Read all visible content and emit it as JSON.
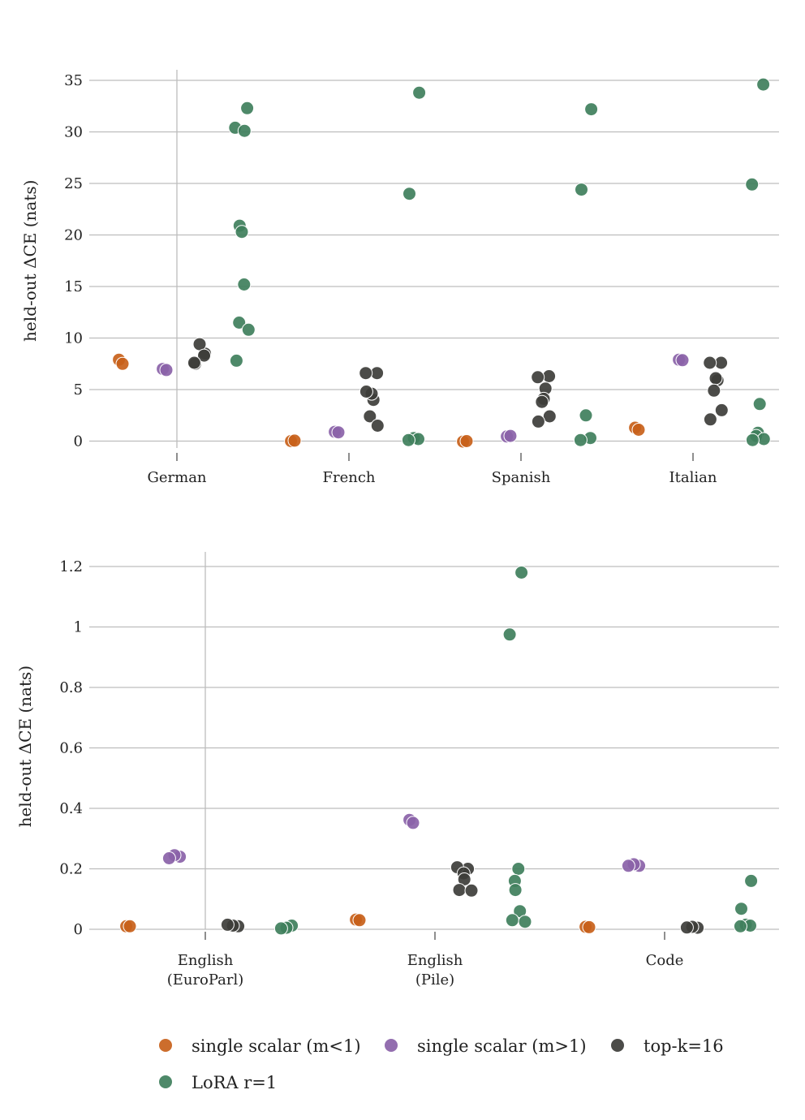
{
  "colors": {
    "single scalar (m<1)": "#c8611a",
    "single scalar (m>1)": "#8a62a8",
    "top-k=16": "#3d3d3a",
    "LoRA r=1": "#3f7f5c"
  },
  "legend": {
    "items": [
      "single scalar (m<1)",
      "single scalar (m>1)",
      "top-k=16",
      "LoRA r=1"
    ]
  },
  "chart_data": [
    {
      "type": "scatter",
      "ylabel": "held-out ΔCE (nats)",
      "ylim": [
        -1.5,
        36.5
      ],
      "yticks": [
        0,
        5,
        10,
        15,
        20,
        25,
        30,
        35
      ],
      "ytick_labels": [
        "0",
        "5",
        "10",
        "15",
        "20",
        "25",
        "30",
        "35"
      ],
      "grid": true,
      "categories": [
        [
          "German"
        ],
        [
          "French"
        ],
        [
          "Spanish"
        ],
        [
          "Italian"
        ]
      ],
      "series": [
        {
          "name": "single scalar (m<1)",
          "points": [
            [
              0,
              7.9
            ],
            [
              0,
              7.5
            ],
            [
              1,
              0.0
            ],
            [
              1,
              0.05
            ],
            [
              2,
              -0.05
            ],
            [
              2,
              0.0
            ],
            [
              3,
              1.3
            ],
            [
              3,
              1.1
            ]
          ]
        },
        {
          "name": "single scalar (m>1)",
          "points": [
            [
              0,
              7.0
            ],
            [
              0,
              6.9
            ],
            [
              1,
              0.9
            ],
            [
              1,
              0.85
            ],
            [
              2,
              0.45
            ],
            [
              2,
              0.5
            ],
            [
              3,
              7.9
            ],
            [
              3,
              7.85
            ]
          ]
        },
        {
          "name": "top-k=16",
          "points": [
            [
              0,
              8.5
            ],
            [
              0,
              7.5
            ],
            [
              0,
              9.4
            ],
            [
              0,
              8.3
            ],
            [
              0,
              7.6
            ],
            [
              1,
              6.6
            ],
            [
              1,
              6.6
            ],
            [
              1,
              4.0
            ],
            [
              1,
              4.6
            ],
            [
              1,
              2.4
            ],
            [
              1,
              1.5
            ],
            [
              1,
              4.8
            ],
            [
              2,
              6.3
            ],
            [
              2,
              6.2
            ],
            [
              2,
              5.1
            ],
            [
              2,
              4.1
            ],
            [
              2,
              3.8
            ],
            [
              2,
              2.4
            ],
            [
              2,
              1.9
            ],
            [
              3,
              7.6
            ],
            [
              3,
              7.6
            ],
            [
              3,
              5.9
            ],
            [
              3,
              6.1
            ],
            [
              3,
              4.9
            ],
            [
              3,
              3.0
            ],
            [
              3,
              2.1
            ]
          ]
        },
        {
          "name": "LoRA r=1",
          "points": [
            [
              0,
              32.3
            ],
            [
              0,
              30.4
            ],
            [
              0,
              30.1
            ],
            [
              0,
              20.9
            ],
            [
              0,
              20.3
            ],
            [
              0,
              15.2
            ],
            [
              0,
              11.5
            ],
            [
              0,
              10.8
            ],
            [
              0,
              7.8
            ],
            [
              1,
              33.8
            ],
            [
              1,
              24.0
            ],
            [
              1,
              0.3
            ],
            [
              1,
              0.2
            ],
            [
              1,
              0.1
            ],
            [
              2,
              32.2
            ],
            [
              2,
              24.4
            ],
            [
              2,
              2.5
            ],
            [
              2,
              0.3
            ],
            [
              2,
              0.1
            ],
            [
              3,
              34.6
            ],
            [
              3,
              24.9
            ],
            [
              3,
              3.6
            ],
            [
              3,
              0.8
            ],
            [
              3,
              0.5
            ],
            [
              3,
              0.2
            ],
            [
              3,
              0.1
            ]
          ]
        }
      ]
    },
    {
      "type": "scatter",
      "ylabel": "held-out ΔCE (nats)",
      "ylim": [
        -0.04,
        1.25
      ],
      "yticks": [
        0,
        0.2,
        0.4,
        0.6,
        0.8,
        1.0,
        1.2
      ],
      "ytick_labels": [
        "0",
        "0.2",
        "0.4",
        "0.6",
        "0.8",
        "1",
        "1.2"
      ],
      "grid": true,
      "categories": [
        [
          "English",
          "(EuroParl)"
        ],
        [
          "English",
          "(Pile)"
        ],
        [
          "Code"
        ]
      ],
      "series": [
        {
          "name": "single scalar (m<1)",
          "points": [
            [
              0,
              0.01
            ],
            [
              0,
              0.01
            ],
            [
              1,
              0.032
            ],
            [
              1,
              0.03
            ],
            [
              2,
              0.008
            ],
            [
              2,
              0.007
            ]
          ]
        },
        {
          "name": "single scalar (m>1)",
          "points": [
            [
              0,
              0.24
            ],
            [
              0,
              0.245
            ],
            [
              0,
              0.235
            ],
            [
              1,
              0.362
            ],
            [
              1,
              0.352
            ],
            [
              2,
              0.21
            ],
            [
              2,
              0.215
            ],
            [
              2,
              0.21
            ]
          ]
        },
        {
          "name": "top-k=16",
          "points": [
            [
              0,
              0.01
            ],
            [
              0,
              0.012
            ],
            [
              0,
              0.015
            ],
            [
              1,
              0.2
            ],
            [
              1,
              0.205
            ],
            [
              1,
              0.185
            ],
            [
              1,
              0.165
            ],
            [
              1,
              0.13
            ],
            [
              1,
              0.128
            ],
            [
              2,
              0.005
            ],
            [
              2,
              0.008
            ],
            [
              2,
              0.006
            ]
          ]
        },
        {
          "name": "LoRA r=1",
          "points": [
            [
              0,
              0.012
            ],
            [
              0,
              0.005
            ],
            [
              0,
              0.003
            ],
            [
              1,
              1.18
            ],
            [
              1,
              0.975
            ],
            [
              1,
              0.2
            ],
            [
              1,
              0.16
            ],
            [
              1,
              0.13
            ],
            [
              1,
              0.06
            ],
            [
              1,
              0.03
            ],
            [
              1,
              0.025
            ],
            [
              2,
              0.16
            ],
            [
              2,
              0.068
            ],
            [
              2,
              0.015
            ],
            [
              2,
              0.012
            ],
            [
              2,
              0.01
            ]
          ]
        }
      ]
    }
  ]
}
